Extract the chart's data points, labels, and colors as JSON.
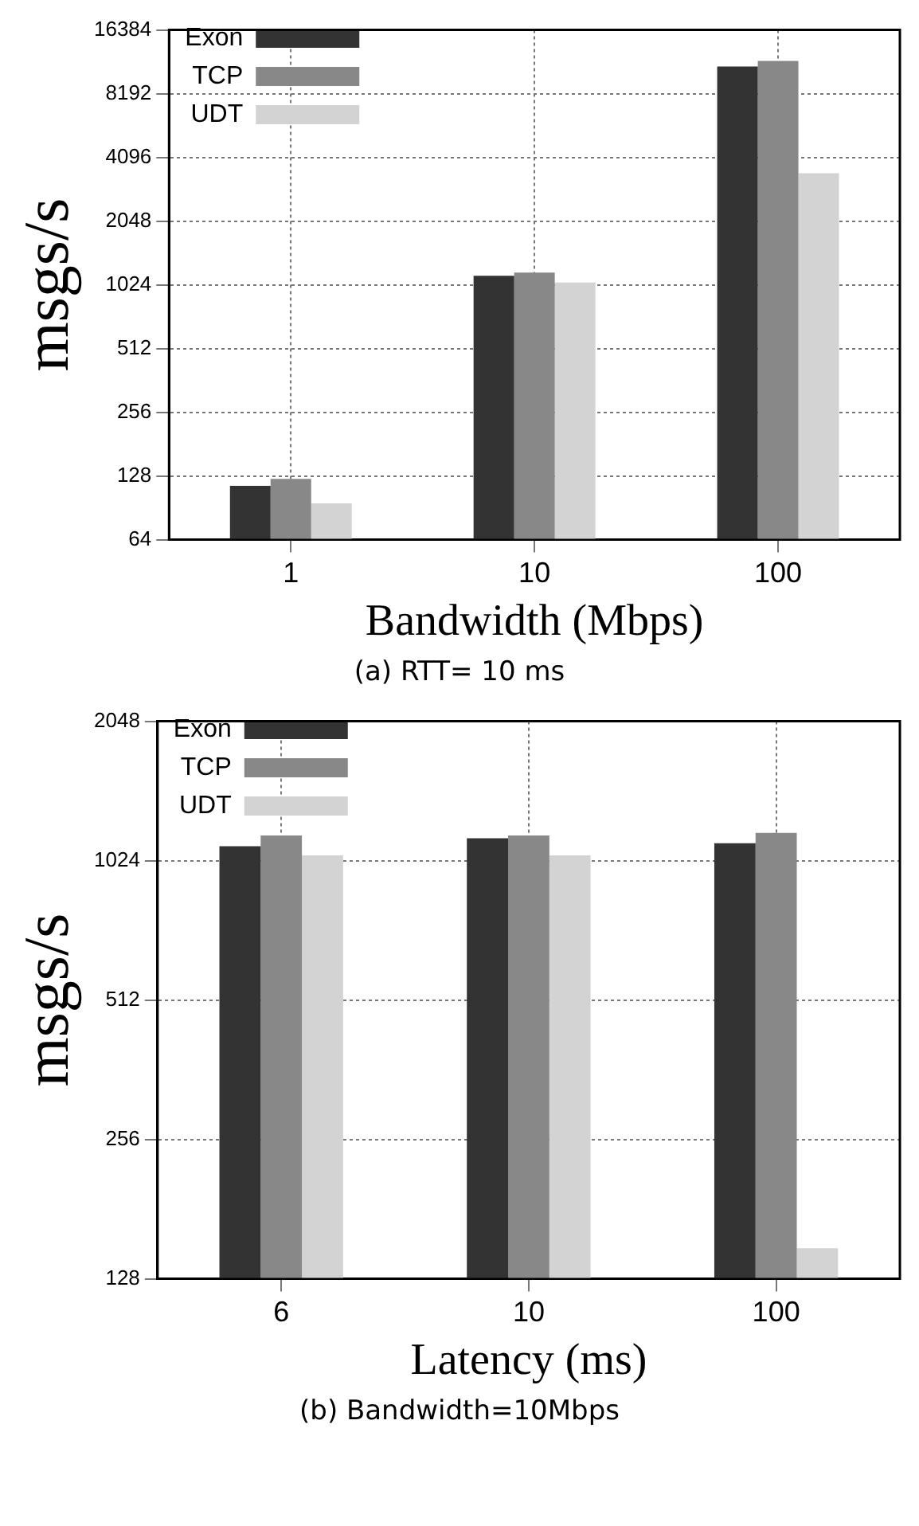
{
  "chart_data": [
    {
      "type": "bar",
      "categories": [
        "1",
        "10",
        "100"
      ],
      "xlabel": "Bandwidth (Mbps)",
      "ylabel": "msgs/s",
      "log": "y",
      "ylim": [
        64,
        16384
      ],
      "yticks": [
        64,
        128,
        256,
        512,
        1024,
        2048,
        4096,
        8192,
        16384
      ],
      "grid": true,
      "legend": "top left",
      "annotations": [
        "(a) RTT= 10 ms"
      ],
      "series": [
        {
          "name": "Exon",
          "color": "#333333",
          "values": [
            115,
            1130,
            11000
          ]
        },
        {
          "name": "TCP",
          "color": "#888888",
          "values": [
            124,
            1170,
            11700
          ]
        },
        {
          "name": "UDT",
          "color": "#d3d3d3",
          "values": [
            95,
            1050,
            3450
          ]
        }
      ]
    },
    {
      "type": "bar",
      "categories": [
        "6",
        "10",
        "100"
      ],
      "xlabel": "Latency (ms)",
      "ylabel": "msgs/s",
      "log": "y",
      "ylim": [
        128,
        2048
      ],
      "yticks": [
        128,
        256,
        512,
        1024,
        2048
      ],
      "grid": true,
      "legend": "top left",
      "annotations": [
        "(b) Bandwidth=10Mbps"
      ],
      "series": [
        {
          "name": "Exon",
          "color": "#333333",
          "values": [
            1100,
            1145,
            1117
          ]
        },
        {
          "name": "TCP",
          "color": "#888888",
          "values": [
            1160,
            1160,
            1175
          ]
        },
        {
          "name": "UDT",
          "color": "#d3d3d3",
          "values": [
            1051,
            1051,
            149
          ]
        }
      ]
    }
  ]
}
